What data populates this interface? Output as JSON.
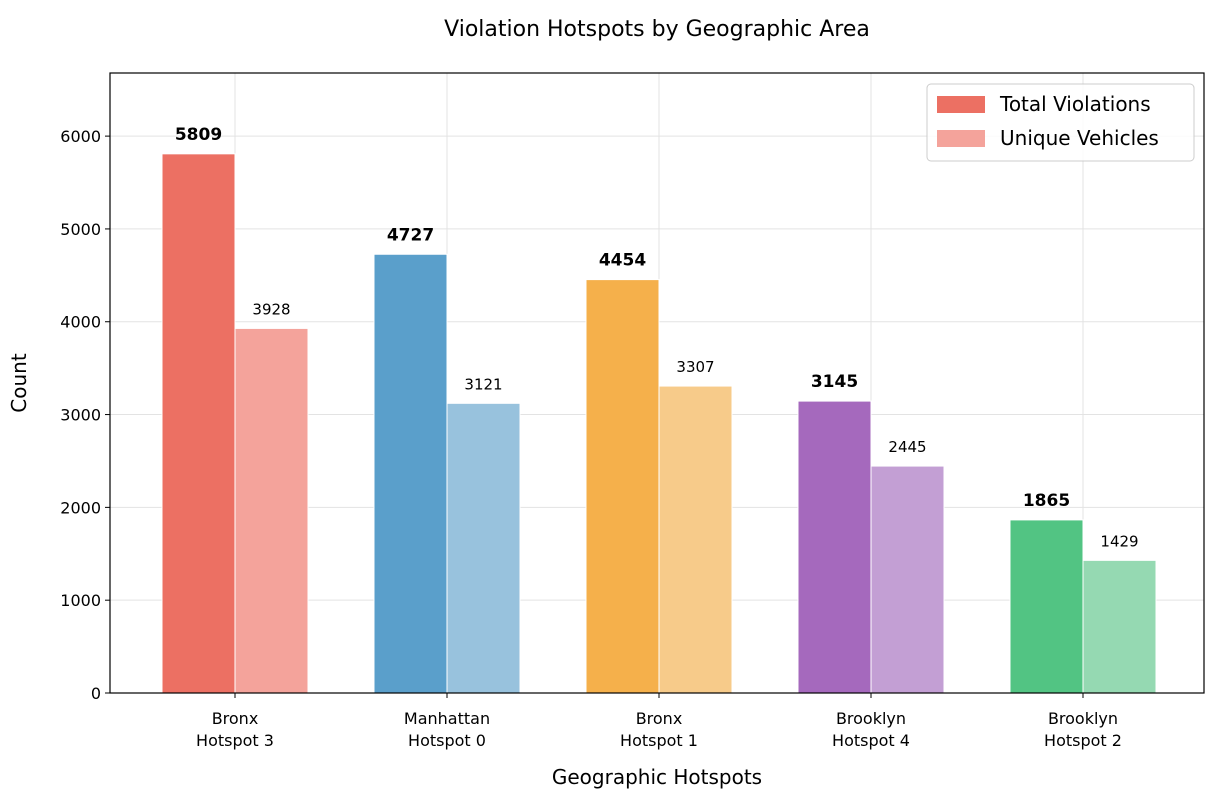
{
  "chart_data": {
    "type": "bar",
    "title": "Violation Hotspots by Geographic Area",
    "xlabel": "Geographic Hotspots",
    "ylabel": "Count",
    "ylim": [
      0,
      6680
    ],
    "yticks": [
      0,
      1000,
      2000,
      3000,
      4000,
      5000,
      6000
    ],
    "grid": true,
    "legend_position": "top-right",
    "categories": [
      [
        "Bronx",
        "Hotspot 3"
      ],
      [
        "Manhattan",
        "Hotspot 0"
      ],
      [
        "Bronx",
        "Hotspot 1"
      ],
      [
        "Brooklyn",
        "Hotspot 4"
      ],
      [
        "Brooklyn",
        "Hotspot 2"
      ]
    ],
    "series": [
      {
        "name": "Total Violations",
        "values": [
          5809,
          4727,
          4454,
          3145,
          1865
        ],
        "colors": [
          "#ec7063",
          "#5a9fcb",
          "#f5b04b",
          "#a569bd",
          "#52c483"
        ],
        "legend_color": "#ec7063"
      },
      {
        "name": "Unique Vehicles",
        "values": [
          3928,
          3121,
          3307,
          2445,
          1429
        ],
        "colors": [
          "#f4a39b",
          "#98c2dd",
          "#f7cb8a",
          "#c39fd4",
          "#95d9b2"
        ],
        "legend_color": "#f4a39b"
      }
    ]
  }
}
